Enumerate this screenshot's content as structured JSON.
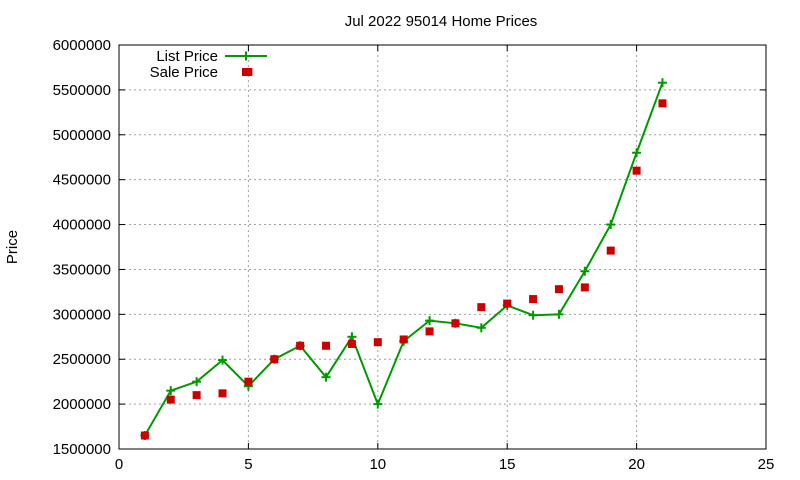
{
  "chart_data": {
    "type": "line",
    "title": "Jul 2022 95014 Home Prices",
    "xlabel": "",
    "ylabel": "Price",
    "xlim": [
      0,
      25
    ],
    "ylim": [
      1500000,
      6000000
    ],
    "xticks": [
      0,
      5,
      10,
      15,
      20,
      25
    ],
    "yticks": [
      1500000,
      2000000,
      2500000,
      3000000,
      3500000,
      4000000,
      4500000,
      5000000,
      5500000,
      6000000
    ],
    "grid": true,
    "legend_position": "top-left",
    "series": [
      {
        "name": "List Price",
        "style": "linespoints",
        "marker": "plus",
        "color": "#009900",
        "x": [
          1,
          2,
          3,
          4,
          5,
          6,
          7,
          8,
          9,
          10,
          11,
          12,
          13,
          14,
          15,
          16,
          17,
          18,
          19,
          20,
          21
        ],
        "y": [
          1650000,
          2150000,
          2250000,
          2490000,
          2200000,
          2500000,
          2650000,
          2300000,
          2750000,
          2000000,
          2700000,
          2930000,
          2900000,
          2850000,
          3100000,
          2990000,
          3000000,
          3480000,
          4000000,
          4800000,
          5580000
        ]
      },
      {
        "name": "Sale Price",
        "style": "points",
        "marker": "square",
        "color": "#cc0000",
        "x": [
          1,
          2,
          3,
          4,
          5,
          6,
          7,
          8,
          9,
          10,
          11,
          12,
          13,
          14,
          15,
          16,
          17,
          18,
          19,
          20,
          21
        ],
        "y": [
          1650000,
          2050000,
          2100000,
          2120000,
          2250000,
          2500000,
          2650000,
          2650000,
          2670000,
          2690000,
          2720000,
          2810000,
          2900000,
          3080000,
          3120000,
          3170000,
          3280000,
          3300000,
          3710000,
          4600000,
          5350000
        ]
      }
    ],
    "extra_points": [
      {
        "series": "Sale Price",
        "x": 5,
        "y": 5700000
      }
    ]
  }
}
